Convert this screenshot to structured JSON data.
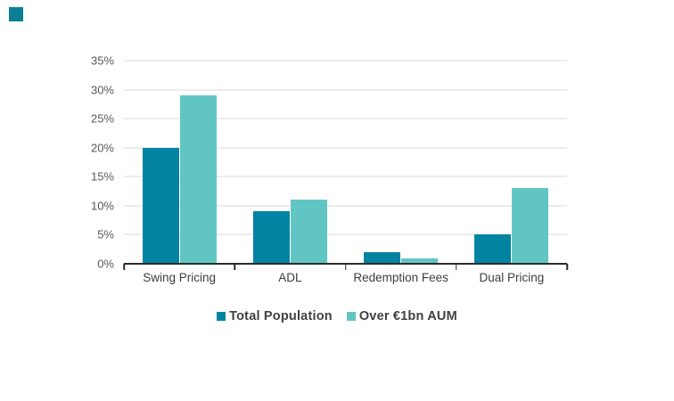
{
  "slide": {
    "background": "#FFFFFF",
    "corner_accent": {
      "color": "#0A7F96"
    }
  },
  "chart_data": {
    "type": "bar",
    "title": "",
    "categories": [
      "Swing Pricing",
      "ADL",
      "Redemption Fees",
      "Dual Pricing"
    ],
    "series": [
      {
        "name": "Total Population",
        "color": "#0383A2",
        "values": [
          20,
          9,
          2,
          5
        ]
      },
      {
        "name": "Over €1bn AUM",
        "color": "#61C6C3",
        "values": [
          29,
          11,
          1,
          13
        ]
      }
    ],
    "value_unit": "percent",
    "ylim": [
      0,
      35
    ],
    "yticks": [
      {
        "value": 0,
        "label": "0%"
      },
      {
        "value": 5,
        "label": "5%"
      },
      {
        "value": 10,
        "label": "10%"
      },
      {
        "value": 15,
        "label": "15%"
      },
      {
        "value": 20,
        "label": "20%"
      },
      {
        "value": 25,
        "label": "25%"
      },
      {
        "value": 30,
        "label": "30%"
      },
      {
        "value": 35,
        "label": "35%"
      }
    ],
    "grid": true,
    "legend_position": "bottom",
    "colors": {
      "gridline": "#D8D8D8",
      "axis_line": "#2B2B2B",
      "ytick_label": "#595959",
      "category_label": "#3D3D3D",
      "legend_text": "#404040"
    }
  }
}
